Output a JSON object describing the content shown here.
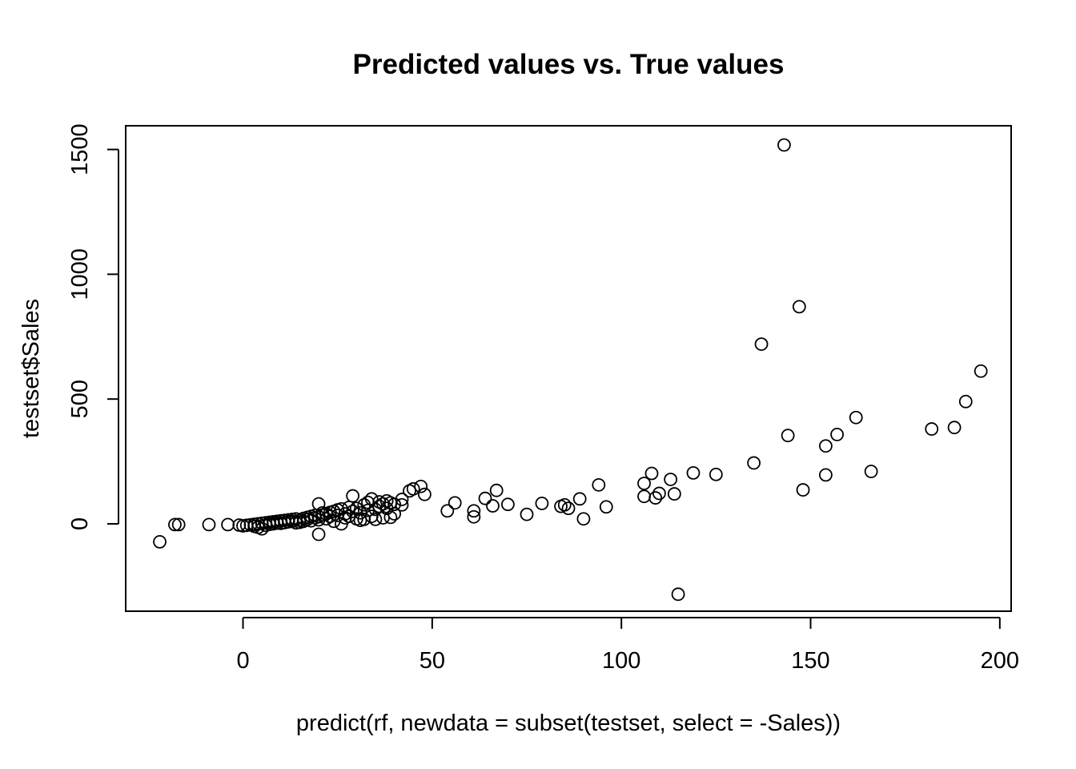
{
  "chart_data": {
    "type": "scatter",
    "title": "Predicted values vs. True values",
    "xlabel": "predict(rf, newdata = subset(testset, select = -Sales))",
    "ylabel": "testset$Sales",
    "xlim": [
      -31,
      203
    ],
    "ylim": [
      -350,
      1595
    ],
    "xticks": [
      0,
      50,
      100,
      150,
      200
    ],
    "yticks": [
      0,
      500,
      1000,
      1500
    ],
    "xtick_labels": [
      "0",
      "50",
      "100",
      "150",
      "200"
    ],
    "ytick_labels": [
      "0",
      "500",
      "1000",
      "1500"
    ],
    "grid": false,
    "legend": "none",
    "marker": "open-circle",
    "points": [
      [
        -22,
        -72
      ],
      [
        -18,
        -3
      ],
      [
        -17,
        -3
      ],
      [
        -9,
        -3
      ],
      [
        -4,
        -3
      ],
      [
        -1,
        -5
      ],
      [
        0,
        -8
      ],
      [
        1,
        -6
      ],
      [
        2,
        -4
      ],
      [
        3,
        -2
      ],
      [
        3,
        -10
      ],
      [
        4,
        0
      ],
      [
        4,
        -14
      ],
      [
        5,
        2
      ],
      [
        5,
        -20
      ],
      [
        6,
        -6
      ],
      [
        6,
        4
      ],
      [
        7,
        6
      ],
      [
        7,
        -2
      ],
      [
        8,
        8
      ],
      [
        8,
        0
      ],
      [
        9,
        3
      ],
      [
        9,
        10
      ],
      [
        10,
        12
      ],
      [
        10,
        2
      ],
      [
        11,
        5
      ],
      [
        11,
        14
      ],
      [
        12,
        8
      ],
      [
        12,
        16
      ],
      [
        13,
        10
      ],
      [
        13,
        18
      ],
      [
        14,
        4
      ],
      [
        14,
        20
      ],
      [
        15,
        14
      ],
      [
        15,
        6
      ],
      [
        16,
        22
      ],
      [
        16,
        10
      ],
      [
        17,
        18
      ],
      [
        17,
        26
      ],
      [
        18,
        12
      ],
      [
        18,
        30
      ],
      [
        19,
        24
      ],
      [
        19,
        34
      ],
      [
        20,
        28
      ],
      [
        20,
        16
      ],
      [
        20,
        80
      ],
      [
        20,
        -42
      ],
      [
        21,
        36
      ],
      [
        21,
        44
      ],
      [
        22,
        20
      ],
      [
        22,
        40
      ],
      [
        23,
        46
      ],
      [
        23,
        30
      ],
      [
        24,
        50
      ],
      [
        24,
        10
      ],
      [
        25,
        34
      ],
      [
        25,
        56
      ],
      [
        26,
        60
      ],
      [
        26,
        0
      ],
      [
        27,
        24
      ],
      [
        27,
        40
      ],
      [
        28,
        66
      ],
      [
        28,
        30
      ],
      [
        29,
        112
      ],
      [
        29,
        50
      ],
      [
        30,
        62
      ],
      [
        30,
        20
      ],
      [
        31,
        44
      ],
      [
        31,
        14
      ],
      [
        32,
        76
      ],
      [
        32,
        18
      ],
      [
        33,
        86
      ],
      [
        33,
        54
      ],
      [
        34,
        100
      ],
      [
        34,
        30
      ],
      [
        35,
        58
      ],
      [
        35,
        18
      ],
      [
        36,
        88
      ],
      [
        36,
        70
      ],
      [
        37,
        80
      ],
      [
        37,
        24
      ],
      [
        38,
        92
      ],
      [
        38,
        62
      ],
      [
        39,
        84
      ],
      [
        39,
        26
      ],
      [
        40,
        40
      ],
      [
        40,
        78
      ],
      [
        42,
        98
      ],
      [
        42,
        76
      ],
      [
        44,
        132
      ],
      [
        45,
        140
      ],
      [
        47,
        150
      ],
      [
        48,
        118
      ],
      [
        54,
        52
      ],
      [
        56,
        84
      ],
      [
        61,
        52
      ],
      [
        61,
        28
      ],
      [
        64,
        102
      ],
      [
        66,
        72
      ],
      [
        67,
        134
      ],
      [
        70,
        78
      ],
      [
        75,
        38
      ],
      [
        79,
        82
      ],
      [
        84,
        70
      ],
      [
        85,
        76
      ],
      [
        86,
        62
      ],
      [
        89,
        100
      ],
      [
        90,
        20
      ],
      [
        94,
        156
      ],
      [
        96,
        68
      ],
      [
        106,
        162
      ],
      [
        106,
        110
      ],
      [
        108,
        202
      ],
      [
        109,
        104
      ],
      [
        110,
        122
      ],
      [
        113,
        178
      ],
      [
        114,
        120
      ],
      [
        115,
        -282
      ],
      [
        119,
        204
      ],
      [
        125,
        198
      ],
      [
        135,
        244
      ],
      [
        137,
        720
      ],
      [
        143,
        1518
      ],
      [
        144,
        354
      ],
      [
        147,
        870
      ],
      [
        148,
        136
      ],
      [
        154,
        312
      ],
      [
        154,
        196
      ],
      [
        157,
        358
      ],
      [
        162,
        426
      ],
      [
        166,
        210
      ],
      [
        182,
        380
      ],
      [
        188,
        386
      ],
      [
        191,
        490
      ],
      [
        195,
        612
      ]
    ]
  }
}
